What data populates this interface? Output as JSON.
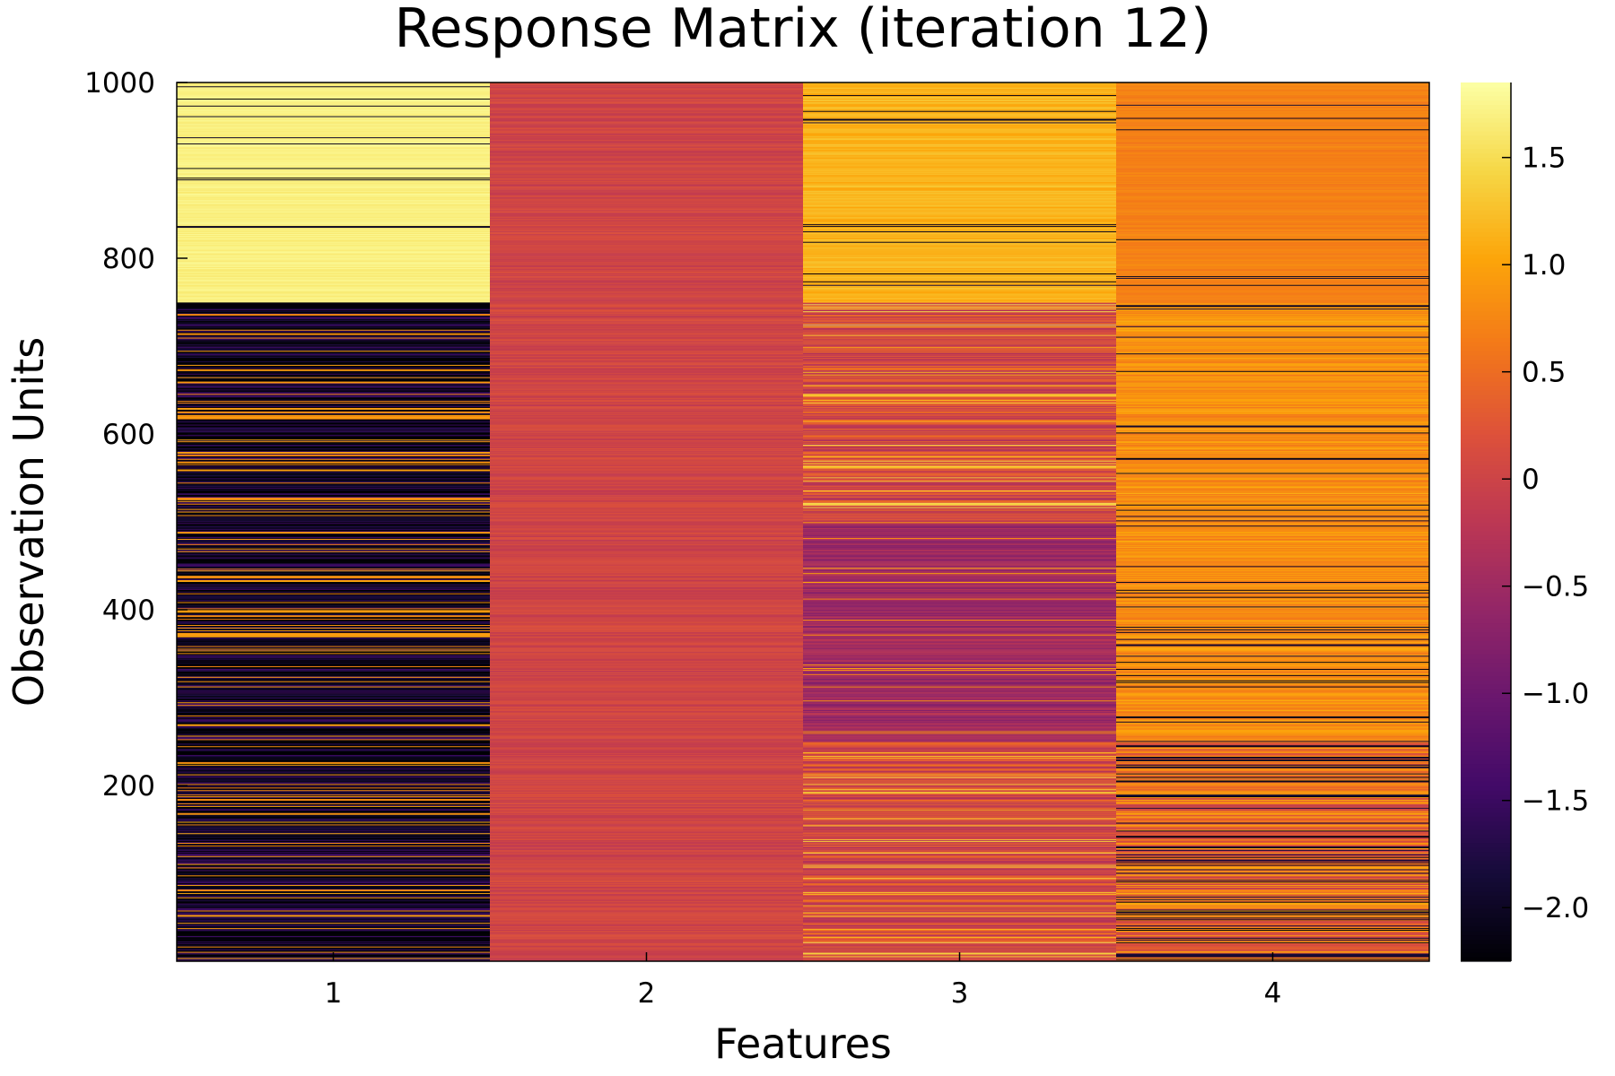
{
  "chart_data": {
    "type": "heatmap",
    "title": "Response Matrix (iteration 12)",
    "xlabel": "Features",
    "ylabel": "Observation Units",
    "x_categories": [
      "1",
      "2",
      "3",
      "4"
    ],
    "yticks": [
      200,
      400,
      600,
      800,
      1000
    ],
    "ylim": [
      1,
      1000
    ],
    "colorbar": {
      "range": [
        -2.25,
        1.85
      ],
      "ticks": [
        1.5,
        1.0,
        0.5,
        0,
        -0.5,
        -1.0,
        -1.5,
        -2.0
      ],
      "tick_labels": [
        "1.5",
        "1.0",
        "0.5",
        "0",
        "−0.5",
        "−1.0",
        "−1.5",
        "−2.0"
      ],
      "colormap": "inferno"
    },
    "bands": [
      {
        "feature": "1",
        "rows": [
          1,
          750
        ],
        "base": -2.0,
        "spread": 0.6,
        "outlier_rate": 0.18,
        "outlier_value": 0.9
      },
      {
        "feature": "1",
        "rows": [
          751,
          1000
        ],
        "base": 1.7,
        "spread": 0.08,
        "outlier_rate": 0.04,
        "outlier_value": -2.1
      },
      {
        "feature": "2",
        "rows": [
          1,
          1000
        ],
        "base": 0.02,
        "spread": 0.18,
        "outlier_rate": 0.0,
        "outlier_value": 0.0
      },
      {
        "feature": "3",
        "rows": [
          1,
          250
        ],
        "base": 0.1,
        "spread": 0.45,
        "outlier_rate": 0.1,
        "outlier_value": 1.3
      },
      {
        "feature": "3",
        "rows": [
          251,
          500
        ],
        "base": -0.5,
        "spread": 0.3,
        "outlier_rate": 0.05,
        "outlier_value": 0.9
      },
      {
        "feature": "3",
        "rows": [
          501,
          750
        ],
        "base": 0.1,
        "spread": 0.45,
        "outlier_rate": 0.1,
        "outlier_value": 1.3
      },
      {
        "feature": "3",
        "rows": [
          751,
          1000
        ],
        "base": 1.15,
        "spread": 0.15,
        "outlier_rate": 0.03,
        "outlier_value": -2.0
      },
      {
        "feature": "4",
        "rows": [
          1,
          250
        ],
        "base": 0.5,
        "spread": 0.6,
        "outlier_rate": 0.2,
        "outlier_value": -2.0
      },
      {
        "feature": "4",
        "rows": [
          251,
          750
        ],
        "base": 0.85,
        "spread": 0.25,
        "outlier_rate": 0.08,
        "outlier_value": -2.0
      },
      {
        "feature": "4",
        "rows": [
          751,
          1000
        ],
        "base": 0.7,
        "spread": 0.1,
        "outlier_rate": 0.03,
        "outlier_value": -2.0
      }
    ]
  }
}
